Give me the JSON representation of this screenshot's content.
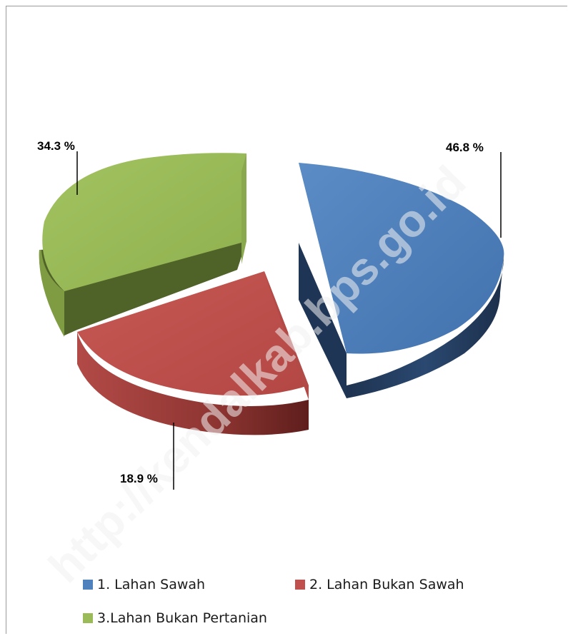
{
  "chart_data": {
    "type": "pie",
    "title": "",
    "slices": [
      {
        "label": "1. Lahan Sawah",
        "value": 46.8,
        "display": "46.8 %",
        "color": "#4f81bd",
        "side_color": "#243a5e"
      },
      {
        "label": "2. Lahan Bukan Sawah",
        "value": 18.9,
        "display": "18.9 %",
        "color": "#c0504d",
        "side_color": "#7a2a28"
      },
      {
        "label": "3.Lahan Bukan Pertanian",
        "value": 34.3,
        "display": "34.3 %",
        "color": "#9bbb59",
        "side_color": "#4f6228"
      }
    ],
    "exploded": true,
    "three_d": true,
    "legend_position": "bottom"
  },
  "watermark": "http://kendalkab.bps.go.id"
}
